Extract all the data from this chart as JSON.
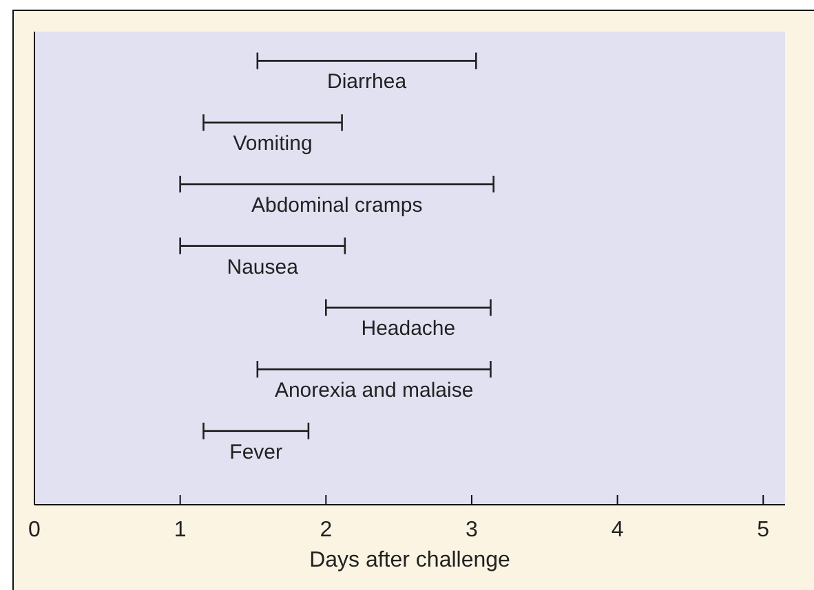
{
  "chart_data": {
    "type": "bar",
    "orientation": "horizontal",
    "xlabel": "Days after challenge",
    "categories": [
      "Diarrhea",
      "Vomiting",
      "Abdominal cramps",
      "Nausea",
      "Headache",
      "Anorexia and malaise",
      "Fever"
    ],
    "base": [
      1.53,
      1.16,
      1.0,
      1.0,
      2.0,
      1.53,
      1.16
    ],
    "values": [
      1.5,
      0.95,
      2.15,
      1.13,
      1.13,
      1.6,
      0.72
    ],
    "color": "#222222",
    "xlim": [
      0,
      5.15
    ],
    "xticks": [
      0,
      1,
      2,
      3,
      4,
      5
    ]
  }
}
